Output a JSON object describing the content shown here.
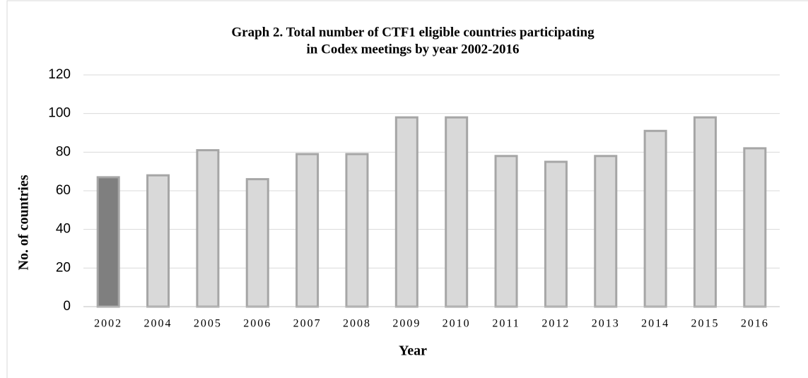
{
  "chart_data": {
    "type": "bar",
    "title": [
      "Graph 2. Total number of CTF1 eligible countries participating",
      "in Codex meetings by year 2002-2016"
    ],
    "x_label": "Year",
    "y_label": "No. of countries",
    "categories": [
      "2002",
      "2004",
      "2005",
      "2006",
      "2007",
      "2008",
      "2009",
      "2010",
      "2011",
      "2012",
      "2013",
      "2014",
      "2015",
      "2016"
    ],
    "values": [
      67,
      68,
      81,
      66,
      79,
      79,
      98,
      98,
      78,
      75,
      78,
      91,
      98,
      82
    ],
    "colors": [
      "#7f7f7f",
      "#d9d9d9",
      "#d9d9d9",
      "#d9d9d9",
      "#d9d9d9",
      "#d9d9d9",
      "#d9d9d9",
      "#d9d9d9",
      "#d9d9d9",
      "#d9d9d9",
      "#d9d9d9",
      "#d9d9d9",
      "#d9d9d9",
      "#d9d9d9"
    ],
    "ylim": [
      0,
      120
    ],
    "yticks": [
      0,
      20,
      40,
      60,
      80,
      100,
      120
    ],
    "grid": true
  }
}
